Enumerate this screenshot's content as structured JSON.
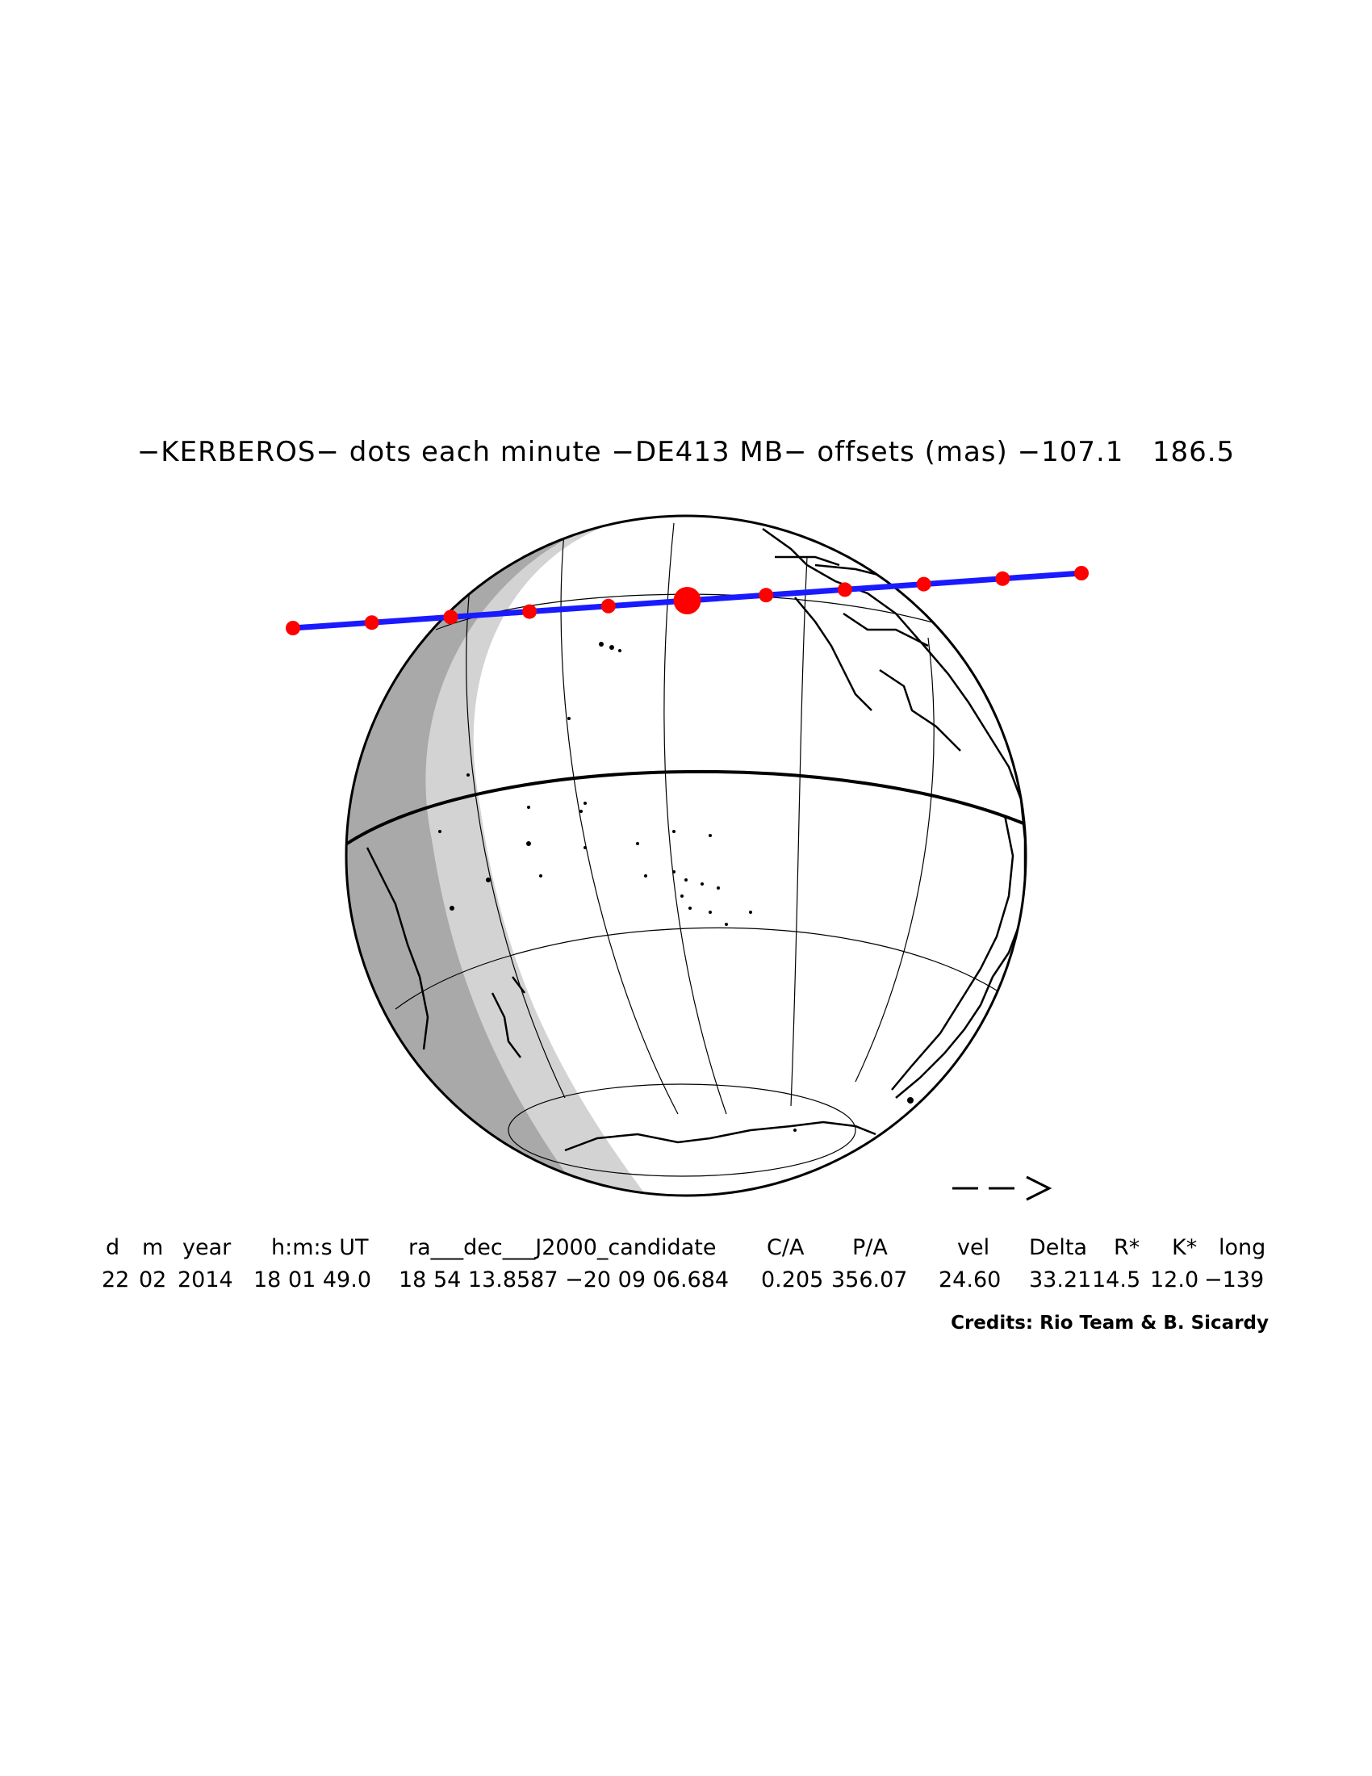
{
  "title": "−KERBEROS− dots each minute −DE413 MB− offsets (mas) −107.1   186.5",
  "direction_arrow": "−− >",
  "table": {
    "headers": [
      "d",
      "m",
      "year",
      "h:m:s UT",
      "ra___dec___J2000_candidate",
      "C/A",
      "P/A",
      "vel",
      "Delta",
      "R*",
      "K*",
      "long"
    ],
    "values": [
      "22",
      "02",
      "2014",
      "18 01 49.0",
      "18 54 13.8587 −20 09 06.684",
      "0.205",
      "356.07",
      "24.60",
      "33.21",
      "14.5",
      "12.0",
      "−139"
    ]
  },
  "credits": "Credits: Rio Team & B. Sicardy",
  "colors": {
    "track": "#1a1aff",
    "dots": "#ff0000",
    "night": "#a9a9a9",
    "twilight": "#d3d3d3",
    "land_outline": "#000000"
  },
  "occultation_track": {
    "dot_count": 11,
    "central_dot_index": 5
  }
}
